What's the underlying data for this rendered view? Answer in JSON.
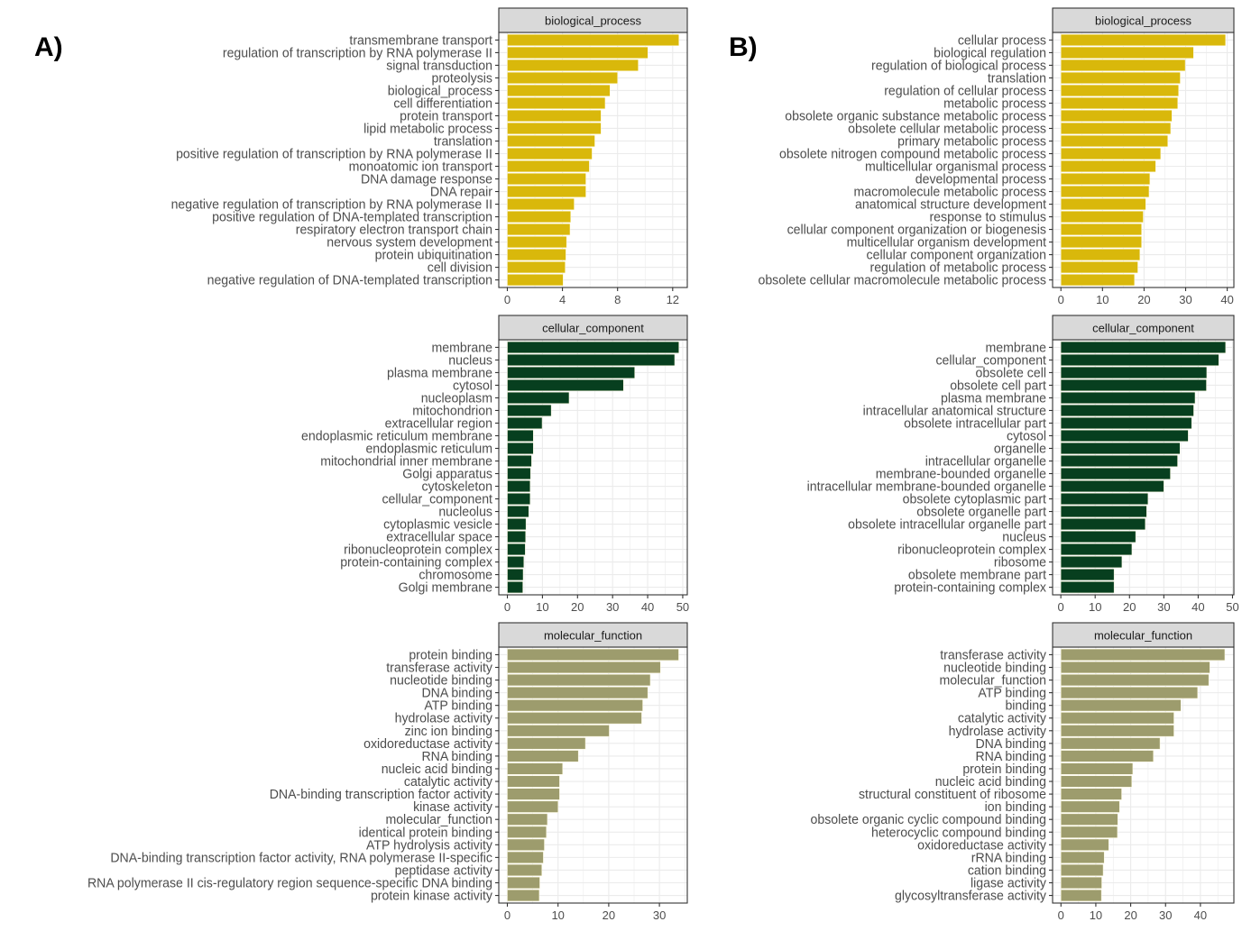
{
  "figure": {
    "panel_labels": [
      "A)",
      "B)"
    ]
  },
  "colors": {
    "biological_process": "#d9b80b",
    "cellular_component": "#073f1f",
    "molecular_function": "#9d9c6d",
    "strip_bg": "#d9d9d9",
    "strip_border": "#333333",
    "grid": "#ebebeb",
    "axis_text": "#4d4d4d"
  },
  "chart_data": [
    {
      "id": "A-biological_process",
      "type": "bar",
      "orientation": "horizontal",
      "panel": "A)",
      "title": "biological_process",
      "xlabel": "",
      "ylabel": "",
      "xlim": [
        -0.62,
        13.06
      ],
      "xticks": [
        0,
        4,
        8,
        12
      ],
      "grid": true,
      "color_key": "biological_process",
      "categories": [
        "transmembrane transport",
        "regulation of transcription by RNA polymerase II",
        "signal transduction",
        "proteolysis",
        "biological_process",
        "cell differentiation",
        "protein transport",
        "lipid metabolic process",
        "translation",
        "positive regulation of transcription by RNA polymerase II",
        "monoatomic ion transport",
        "DNA damage response",
        "DNA repair",
        "negative regulation of transcription by RNA polymerase II",
        "positive regulation of DNA-templated transcription",
        "respiratory electron transport chain",
        "nervous system development",
        "protein ubiquitination",
        "cell division",
        "negative regulation of DNA-templated transcription"
      ],
      "values": [
        12.45,
        10.2,
        9.5,
        8.0,
        7.45,
        7.1,
        6.8,
        6.8,
        6.35,
        6.15,
        5.95,
        5.7,
        5.7,
        4.85,
        4.6,
        4.55,
        4.3,
        4.25,
        4.2,
        4.05
      ]
    },
    {
      "id": "A-cellular_component",
      "type": "bar",
      "orientation": "horizontal",
      "panel": "A)",
      "title": "cellular_component",
      "xlabel": "",
      "ylabel": "",
      "xlim": [
        -2.45,
        51.3
      ],
      "xticks": [
        0,
        10,
        20,
        30,
        40,
        50
      ],
      "grid": true,
      "color_key": "cellular_component",
      "categories": [
        "membrane",
        "nucleus",
        "plasma membrane",
        "cytosol",
        "nucleoplasm",
        "mitochondrion",
        "extracellular region",
        "endoplasmic reticulum membrane",
        "endoplasmic reticulum",
        "mitochondrial inner membrane",
        "Golgi apparatus",
        "cytoskeleton",
        "cellular_component",
        "nucleolus",
        "cytoplasmic vesicle",
        "extracellular space",
        "ribonucleoprotein complex",
        "protein-containing complex",
        "chromosome",
        "Golgi membrane"
      ],
      "values": [
        48.9,
        47.7,
        36.3,
        33.1,
        17.6,
        12.5,
        9.9,
        7.4,
        7.4,
        6.9,
        6.6,
        6.5,
        6.5,
        6.1,
        5.3,
        5.2,
        5.1,
        4.7,
        4.5,
        4.4
      ]
    },
    {
      "id": "A-molecular_function",
      "type": "bar",
      "orientation": "horizontal",
      "panel": "A)",
      "title": "molecular_function",
      "xlabel": "",
      "ylabel": "",
      "xlim": [
        -1.69,
        35.5
      ],
      "xticks": [
        0,
        10,
        20,
        30
      ],
      "grid": true,
      "color_key": "molecular_function",
      "categories": [
        "protein binding",
        "transferase activity",
        "nucleotide binding",
        "DNA binding",
        "ATP binding",
        "hydrolase activity",
        "zinc ion binding",
        "oxidoreductase activity",
        "RNA binding",
        "nucleic acid binding",
        "catalytic activity",
        "DNA-binding transcription factor activity",
        "kinase activity",
        "molecular_function",
        "identical protein binding",
        "ATP hydrolysis activity",
        "DNA-binding transcription factor activity, RNA polymerase II-specific",
        "peptidase activity",
        "RNA polymerase II cis-regulatory region sequence-specific DNA binding",
        "protein kinase activity"
      ],
      "values": [
        33.8,
        30.2,
        28.2,
        27.7,
        26.7,
        26.5,
        20.1,
        15.4,
        14.0,
        10.9,
        10.3,
        10.3,
        10.0,
        7.9,
        7.7,
        7.3,
        7.1,
        6.8,
        6.4,
        6.3
      ]
    },
    {
      "id": "B-biological_process",
      "type": "bar",
      "orientation": "horizontal",
      "panel": "B)",
      "title": "biological_process",
      "xlabel": "",
      "ylabel": "",
      "xlim": [
        -2.0,
        41.6
      ],
      "xticks": [
        0,
        10,
        20,
        30,
        40
      ],
      "grid": true,
      "color_key": "biological_process",
      "categories": [
        "cellular process",
        "biological regulation",
        "regulation of biological process",
        "translation",
        "regulation of cellular process",
        "metabolic process",
        "obsolete organic substance metabolic process",
        "obsolete cellular metabolic process",
        "primary metabolic process",
        "obsolete nitrogen compound metabolic process",
        "multicellular organismal process",
        "developmental process",
        "macromolecule metabolic process",
        "anatomical structure development",
        "response to stimulus",
        "cellular component organization or biogenesis",
        "multicellular organism development",
        "cellular component organization",
        "regulation of metabolic process",
        "obsolete cellular macromolecule metabolic process"
      ],
      "values": [
        39.6,
        31.9,
        29.9,
        28.7,
        28.3,
        28.1,
        26.7,
        26.4,
        25.7,
        24.0,
        22.8,
        21.4,
        21.2,
        20.4,
        19.8,
        19.4,
        19.4,
        19.0,
        18.5,
        17.7
      ]
    },
    {
      "id": "B-cellular_component",
      "type": "bar",
      "orientation": "horizontal",
      "panel": "B)",
      "title": "cellular_component",
      "xlabel": "",
      "ylabel": "",
      "xlim": [
        -2.4,
        50.4
      ],
      "xticks": [
        0,
        10,
        20,
        30,
        40,
        50
      ],
      "grid": true,
      "color_key": "cellular_component",
      "categories": [
        "membrane",
        "cellular_component",
        "obsolete cell",
        "obsolete cell part",
        "plasma membrane",
        "intracellular anatomical structure",
        "obsolete intracellular part",
        "cytosol",
        "organelle",
        "intracellular organelle",
        "membrane-bounded organelle",
        "intracellular membrane-bounded organelle",
        "obsolete cytoplasmic part",
        "obsolete organelle part",
        "obsolete intracellular organelle part",
        "nucleus",
        "ribonucleoprotein complex",
        "ribosome",
        "obsolete membrane part",
        "protein-containing complex"
      ],
      "values": [
        48.0,
        46.0,
        42.5,
        42.4,
        39.1,
        38.7,
        38.1,
        37.1,
        34.7,
        34.0,
        31.9,
        30.0,
        25.4,
        25.0,
        24.6,
        21.8,
        20.7,
        17.8,
        15.5,
        15.5
      ]
    },
    {
      "id": "B-molecular_function",
      "type": "bar",
      "orientation": "horizontal",
      "panel": "B)",
      "title": "molecular_function",
      "xlabel": "",
      "ylabel": "",
      "xlim": [
        -2.4,
        49.6
      ],
      "xticks": [
        0,
        10,
        20,
        30,
        40
      ],
      "grid": true,
      "color_key": "molecular_function",
      "categories": [
        "transferase activity",
        "nucleotide binding",
        "molecular_function",
        "ATP binding",
        "binding",
        "catalytic activity",
        "hydrolase activity",
        "DNA binding",
        "RNA binding",
        "protein binding",
        "nucleic acid binding",
        "structural constituent of ribosome",
        "ion binding",
        "obsolete organic cyclic compound binding",
        "heterocyclic compound binding",
        "oxidoreductase activity",
        "rRNA binding",
        "cation binding",
        "ligase activity",
        "glycosyltransferase activity"
      ],
      "values": [
        47.0,
        42.7,
        42.4,
        39.2,
        34.4,
        32.4,
        32.4,
        28.4,
        26.5,
        20.6,
        20.3,
        17.4,
        16.8,
        16.3,
        16.2,
        13.7,
        12.4,
        12.1,
        11.7,
        11.6
      ]
    }
  ]
}
